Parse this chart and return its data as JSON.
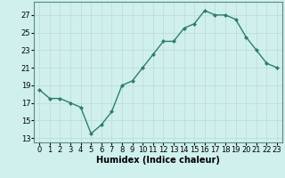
{
  "x": [
    0,
    1,
    2,
    3,
    4,
    5,
    6,
    7,
    8,
    9,
    10,
    11,
    12,
    13,
    14,
    15,
    16,
    17,
    18,
    19,
    20,
    21,
    22,
    23
  ],
  "y": [
    18.5,
    17.5,
    17.5,
    17.0,
    16.5,
    13.5,
    14.5,
    16.0,
    19.0,
    19.5,
    21.0,
    22.5,
    24.0,
    24.0,
    25.5,
    26.0,
    27.5,
    27.0,
    27.0,
    26.5,
    24.5,
    23.0,
    21.5,
    21.0
  ],
  "line_color": "#2e7d6e",
  "marker": "D",
  "marker_size": 2.0,
  "line_width": 1.0,
  "bg_color": "#cff0ec",
  "grid_color_major": "#c0d8d4",
  "grid_color_minor": "#d8eeeb",
  "xlabel": "Humidex (Indice chaleur)",
  "yticks": [
    13,
    15,
    17,
    19,
    21,
    23,
    25,
    27
  ],
  "xticks": [
    0,
    1,
    2,
    3,
    4,
    5,
    6,
    7,
    8,
    9,
    10,
    11,
    12,
    13,
    14,
    15,
    16,
    17,
    18,
    19,
    20,
    21,
    22,
    23
  ],
  "ylim": [
    12.5,
    28.5
  ],
  "xlim": [
    -0.5,
    23.5
  ],
  "label_fontsize": 7,
  "tick_fontsize": 6
}
